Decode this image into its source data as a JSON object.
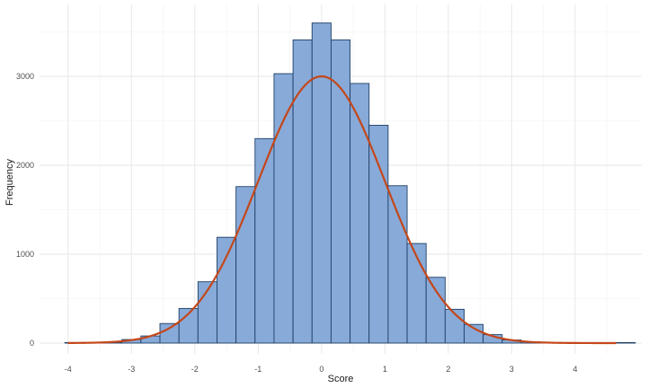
{
  "chart_data": {
    "type": "bar",
    "title": "",
    "xlabel": "Score",
    "ylabel": "Frequency",
    "xlim": [
      -4.45,
      5.05
    ],
    "ylim": [
      0,
      3600
    ],
    "x_ticks": [
      -4,
      -3,
      -2,
      -1,
      0,
      1,
      2,
      3,
      4
    ],
    "y_ticks": [
      0,
      1000,
      2000,
      3000
    ],
    "grid": true,
    "bin_width": 0.3,
    "bins": [
      {
        "x0": -4.05,
        "x1": -3.75,
        "count": 2
      },
      {
        "x0": -3.75,
        "x1": -3.45,
        "count": 4
      },
      {
        "x0": -3.45,
        "x1": -3.15,
        "count": 10
      },
      {
        "x0": -3.15,
        "x1": -2.85,
        "count": 40
      },
      {
        "x0": -2.85,
        "x1": -2.55,
        "count": 80
      },
      {
        "x0": -2.55,
        "x1": -2.25,
        "count": 220
      },
      {
        "x0": -2.25,
        "x1": -1.95,
        "count": 390
      },
      {
        "x0": -1.95,
        "x1": -1.65,
        "count": 690
      },
      {
        "x0": -1.65,
        "x1": -1.35,
        "count": 1190
      },
      {
        "x0": -1.35,
        "x1": -1.05,
        "count": 1760
      },
      {
        "x0": -1.05,
        "x1": -0.75,
        "count": 2300
      },
      {
        "x0": -0.75,
        "x1": -0.45,
        "count": 3030
      },
      {
        "x0": -0.45,
        "x1": -0.15,
        "count": 3410
      },
      {
        "x0": -0.15,
        "x1": 0.15,
        "count": 3600
      },
      {
        "x0": 0.15,
        "x1": 0.45,
        "count": 3410
      },
      {
        "x0": 0.45,
        "x1": 0.75,
        "count": 2920
      },
      {
        "x0": 0.75,
        "x1": 1.05,
        "count": 2450
      },
      {
        "x0": 1.05,
        "x1": 1.35,
        "count": 1770
      },
      {
        "x0": 1.35,
        "x1": 1.65,
        "count": 1120
      },
      {
        "x0": 1.65,
        "x1": 1.95,
        "count": 740
      },
      {
        "x0": 1.95,
        "x1": 2.25,
        "count": 380
      },
      {
        "x0": 2.25,
        "x1": 2.55,
        "count": 210
      },
      {
        "x0": 2.55,
        "x1": 2.85,
        "count": 95
      },
      {
        "x0": 2.85,
        "x1": 3.15,
        "count": 35
      },
      {
        "x0": 3.15,
        "x1": 3.45,
        "count": 15
      },
      {
        "x0": 3.45,
        "x1": 3.75,
        "count": 5
      },
      {
        "x0": 3.75,
        "x1": 4.05,
        "count": 2
      },
      {
        "x0": 4.05,
        "x1": 4.35,
        "count": 1
      },
      {
        "x0": 4.35,
        "x1": 4.65,
        "count": 1
      },
      {
        "x0": 4.65,
        "x1": 4.95,
        "count": 1
      }
    ],
    "density_curve": {
      "type": "normal",
      "mean": 0,
      "sd": 1,
      "peak": 3000,
      "x_range": [
        -4,
        4.65
      ]
    },
    "colors": {
      "bar_fill": "#88aad8",
      "bar_stroke": "#1f3f66",
      "curve": "#c4471a",
      "grid_major": "#e6e6e6",
      "grid_minor": "#f2f2f2"
    }
  }
}
